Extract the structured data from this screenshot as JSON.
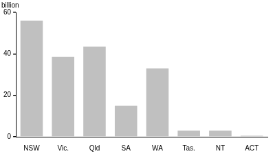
{
  "chart_data": {
    "type": "bar",
    "y_label": "billion",
    "categories": [
      "NSW",
      "Vic.",
      "Qld",
      "SA",
      "WA",
      "Tas.",
      "NT",
      "ACT"
    ],
    "values": [
      56,
      38.5,
      43.5,
      15,
      33,
      3,
      3,
      0.5
    ],
    "color": "#c0c0c0",
    "ylim": [
      0,
      60
    ],
    "yticks": [
      0,
      20,
      40,
      60
    ],
    "grid": true
  }
}
